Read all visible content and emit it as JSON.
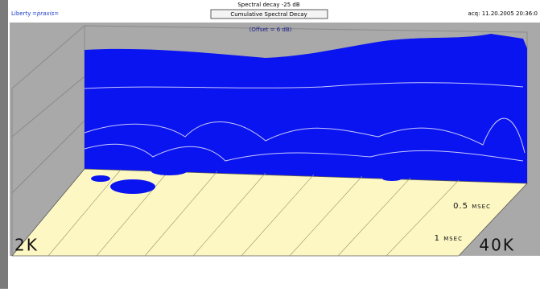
{
  "header": {
    "brand": "Liberty",
    "brand_sub": "=praxis=",
    "title": "Spectral decay -25 dB",
    "mode": "Cumulative Spectral Decay",
    "acquired": "acq: 11.20.2005 20:36:0"
  },
  "plot": {
    "offset_note": "(Offset = 6 dB)",
    "freq_start": "2K",
    "freq_end": "40K",
    "time_mid": "0.5 msec",
    "time_end": "1 msec"
  }
}
